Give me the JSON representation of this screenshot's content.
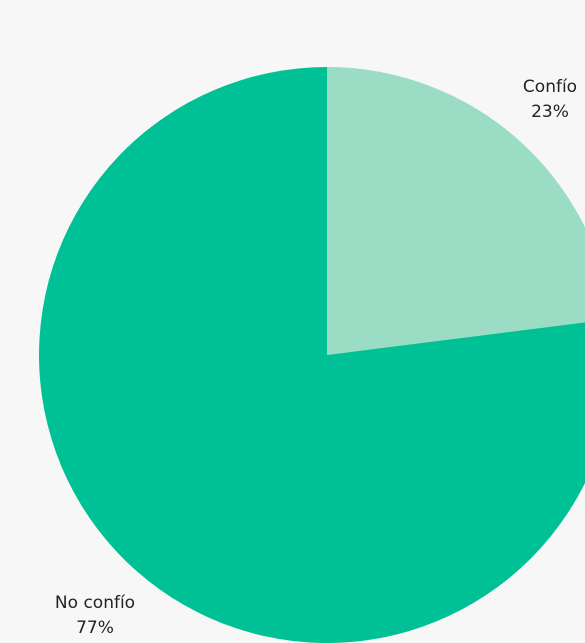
{
  "chart_data": {
    "type": "pie",
    "categories": [
      "Confío",
      "No confío"
    ],
    "values": [
      23,
      77
    ],
    "labels": [
      {
        "name": "Confío",
        "percent": "23%"
      },
      {
        "name": "No confío",
        "percent": "77%"
      }
    ],
    "colors": [
      "#9bdcc4",
      "#00c095"
    ],
    "start_angle_deg": 0,
    "direction": "clockwise",
    "legend": "none"
  }
}
